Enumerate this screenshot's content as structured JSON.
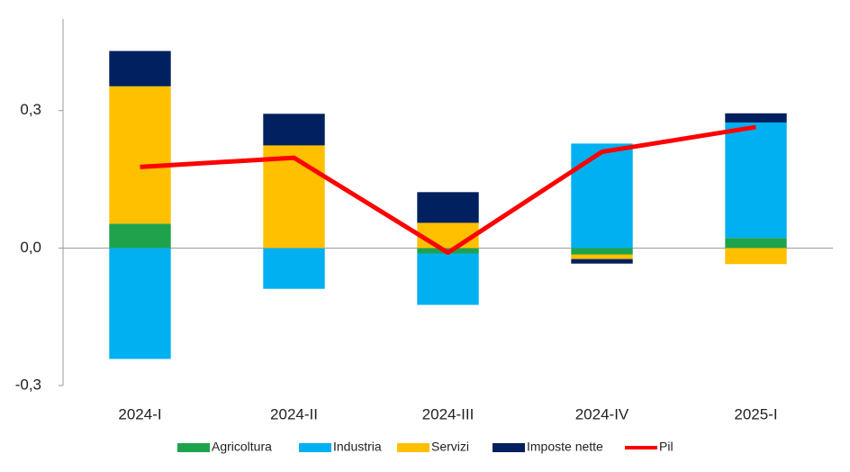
{
  "chart_data": {
    "type": "bar",
    "stacked": true,
    "categories": [
      "2024-I",
      "2024-II",
      "2024-III",
      "2024-IV",
      "2025-I"
    ],
    "series": [
      {
        "name": "Agricoltura",
        "color": "#1ea34c",
        "values": [
          0.053,
          0,
          -0.012,
          -0.014,
          0.022
        ]
      },
      {
        "name": "Industria",
        "color": "#00b0f0",
        "values": [
          -0.242,
          -0.089,
          -0.112,
          0.228,
          0.252
        ]
      },
      {
        "name": "Servizi",
        "color": "#ffc000",
        "values": [
          0.3,
          0.224,
          0.055,
          -0.01,
          -0.035
        ]
      },
      {
        "name": "Imposte nette",
        "color": "#002060",
        "values": [
          0.077,
          0.069,
          0.067,
          -0.01,
          0.02
        ]
      },
      {
        "name": "Pil",
        "color": "#ff0000",
        "type": "line",
        "values": [
          0.177,
          0.197,
          -0.01,
          0.21,
          0.264
        ]
      }
    ],
    "ylim": [
      -0.3,
      0.5
    ],
    "yticks": [
      {
        "value": 0.3,
        "label": "0,3"
      },
      {
        "value": 0,
        "label": "0,0"
      },
      {
        "value": -0.3,
        "label": "-0,3"
      }
    ],
    "legend": "bottom"
  }
}
